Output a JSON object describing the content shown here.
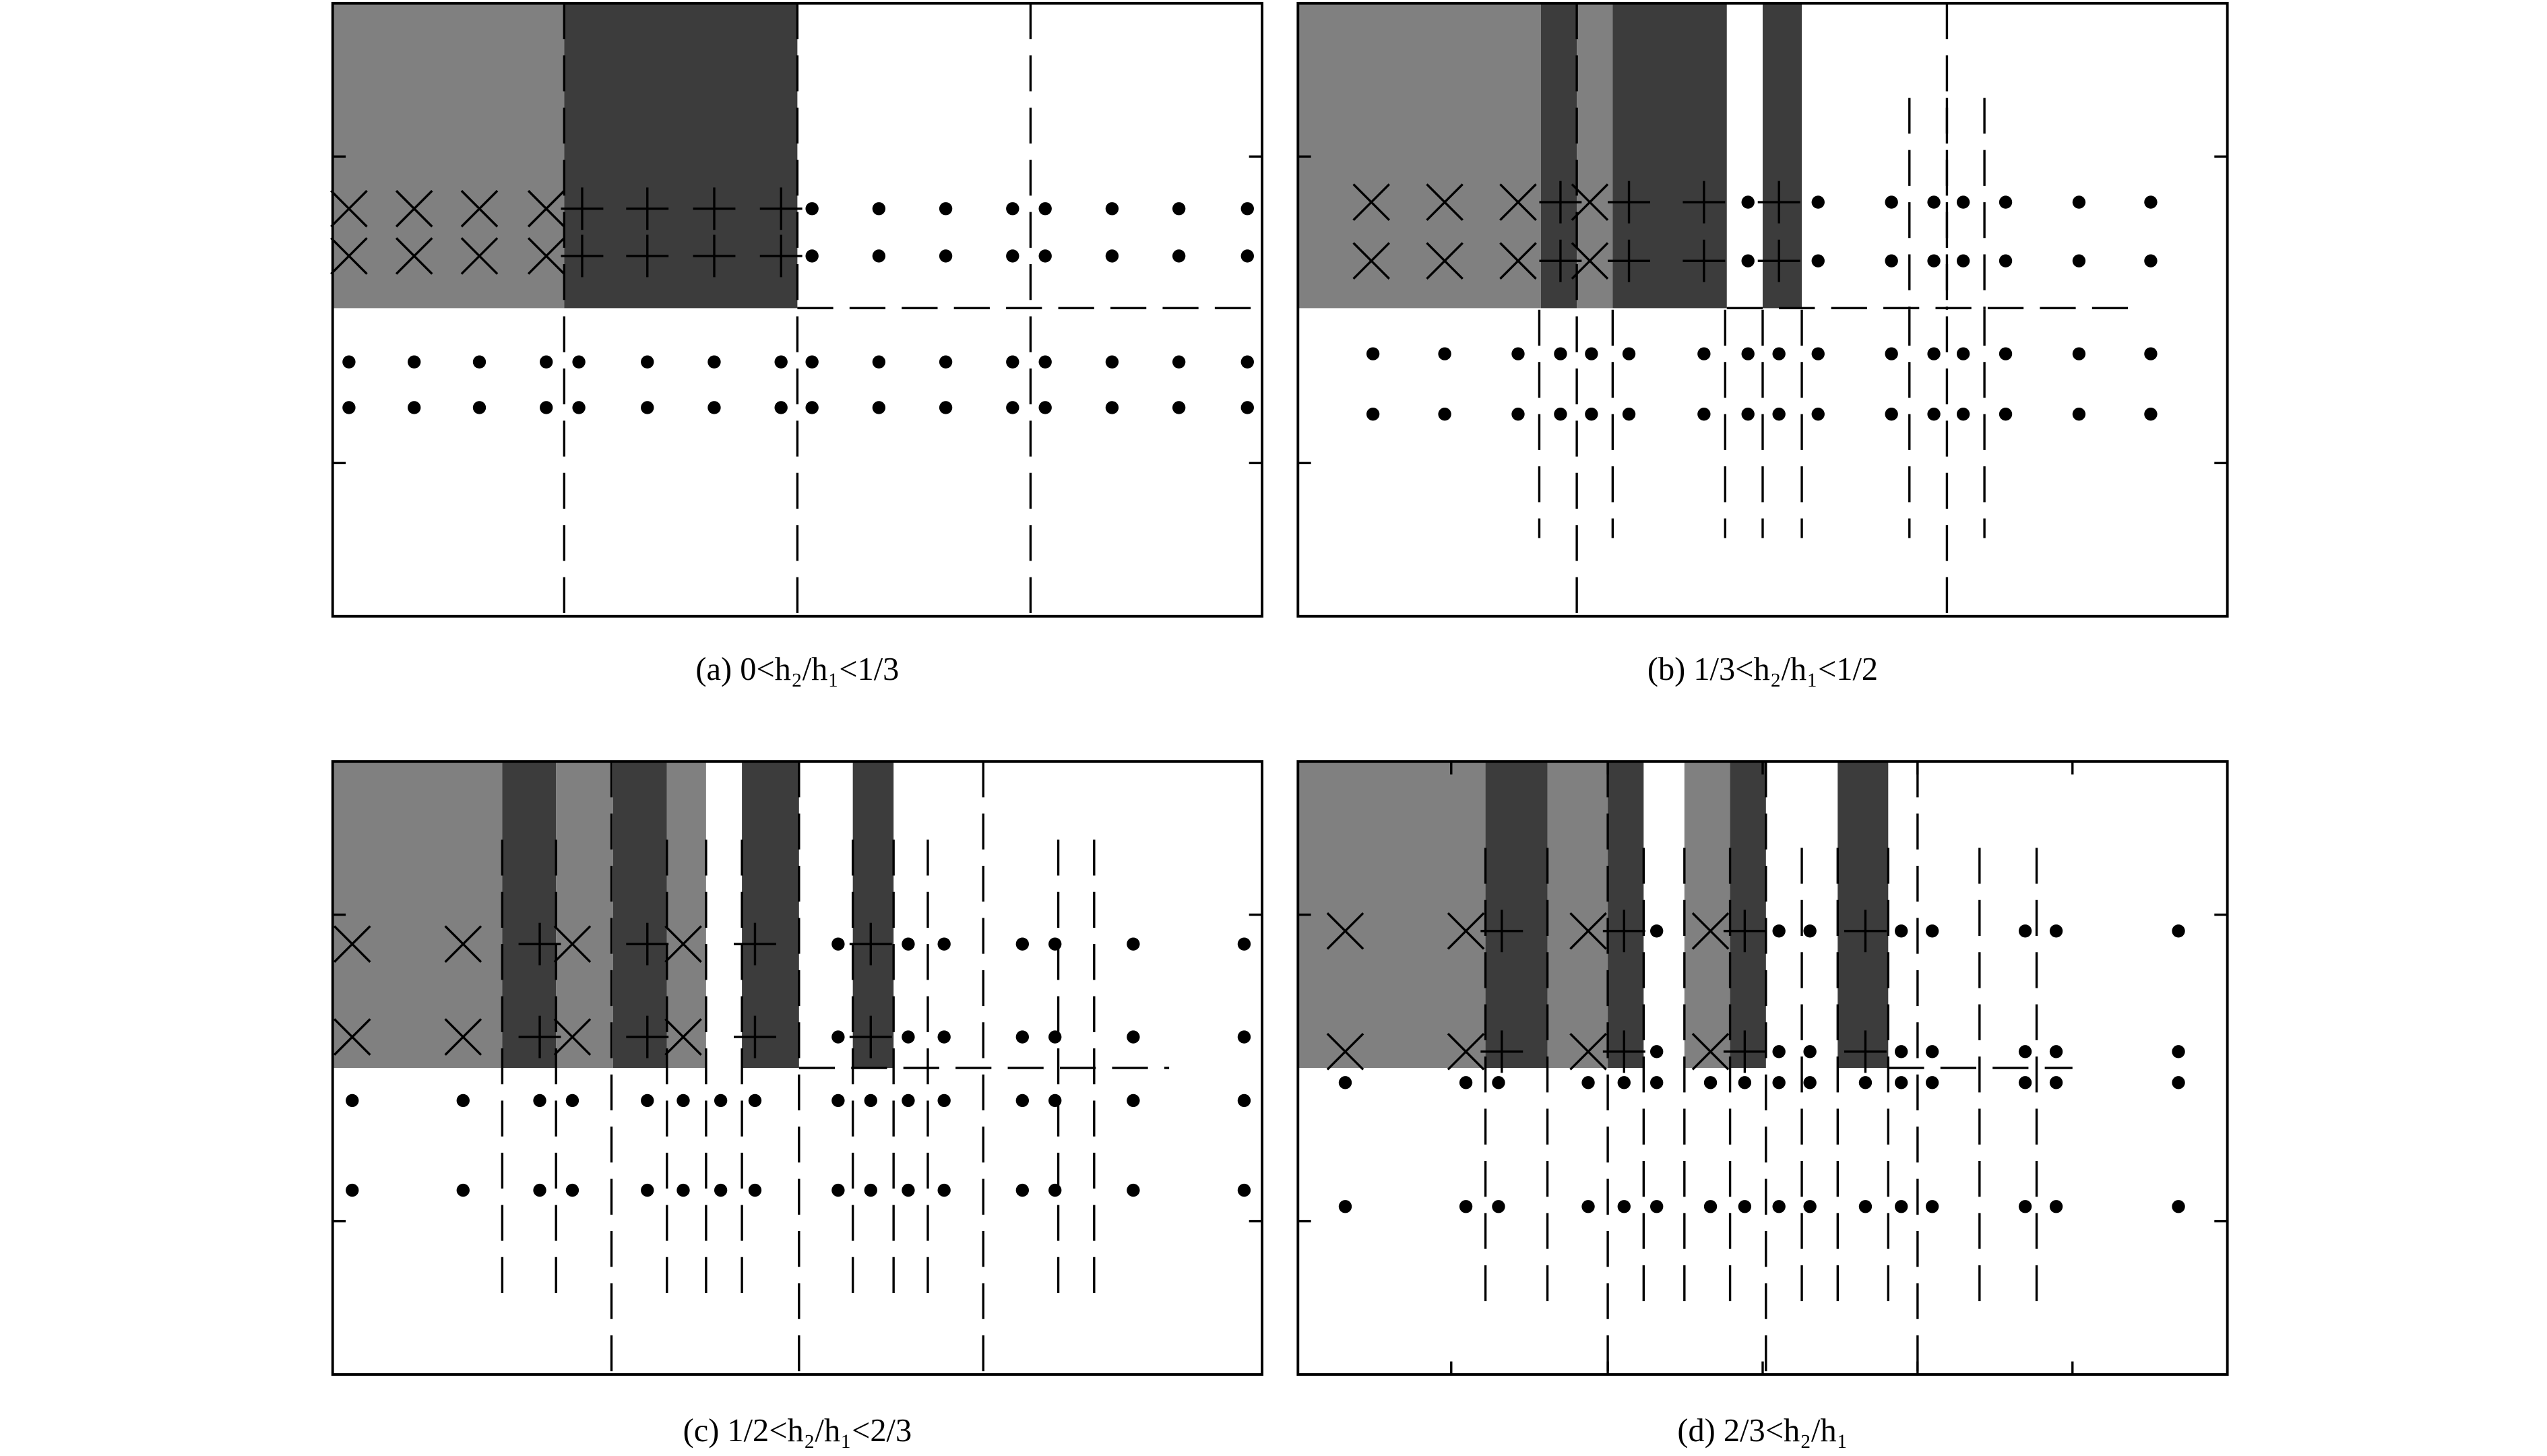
{
  "captions": [
    "(a) 0<h₂/h₁<1/3",
    "(b) 1/3<h₂/h₁<1/2",
    "(c) 1/2<h₂/h₁<2/3",
    "(d) 2/3<h₂/h₁"
  ]
}
